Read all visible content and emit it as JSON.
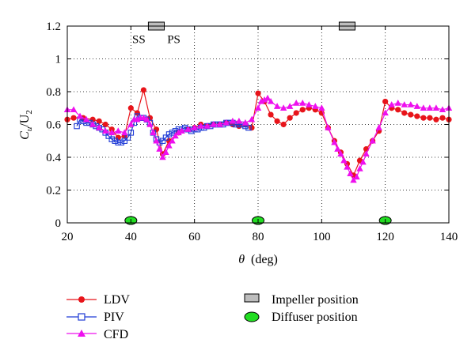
{
  "chart_data": {
    "type": "line",
    "xlabel_symbol": "θ",
    "xlabel_unit": "(deg)",
    "ylabel_main": "C",
    "ylabel_sub": "u",
    "ylabel_mid": "/U",
    "ylabel_sub2": "2",
    "xlim": [
      20,
      140
    ],
    "ylim": [
      0,
      1.2
    ],
    "x_ticks": [
      20,
      40,
      60,
      80,
      100,
      120,
      140
    ],
    "y_ticks": [
      0,
      0.2,
      0.4,
      0.6,
      0.8,
      1,
      1.2
    ],
    "x_tick_labels": [
      "20",
      "40",
      "60",
      "80",
      "100",
      "120",
      "140"
    ],
    "y_tick_labels": [
      "0",
      "0.2",
      "0.4",
      "0.6",
      "0.8",
      "1",
      "1.2"
    ],
    "grid": true,
    "legend_placement": "bottom",
    "annotations": [
      {
        "text": "SS",
        "x": 42.5,
        "y": 1.12
      },
      {
        "text": "PS",
        "x": 53.5,
        "y": 1.12
      }
    ],
    "series": [
      {
        "name": "LDV",
        "color": "#e8141a",
        "marker": "circle",
        "x": [
          20,
          22,
          25,
          28,
          30,
          32,
          34,
          36,
          38,
          40,
          42,
          44,
          46,
          48,
          50,
          52,
          55,
          58,
          60,
          62,
          64,
          66,
          68,
          70,
          72,
          74,
          76,
          78,
          80,
          82,
          84,
          86,
          88,
          90,
          92,
          94,
          96,
          98,
          100,
          102,
          104,
          106,
          108,
          110,
          112,
          114,
          116,
          118,
          120,
          122,
          124,
          126,
          128,
          130,
          132,
          134,
          136,
          138,
          140
        ],
        "y": [
          0.63,
          0.64,
          0.64,
          0.63,
          0.62,
          0.6,
          0.57,
          0.52,
          0.53,
          0.7,
          0.67,
          0.81,
          0.64,
          0.57,
          0.42,
          0.5,
          0.55,
          0.57,
          0.58,
          0.6,
          0.59,
          0.6,
          0.6,
          0.61,
          0.6,
          0.59,
          0.6,
          0.58,
          0.79,
          0.74,
          0.66,
          0.62,
          0.6,
          0.64,
          0.67,
          0.69,
          0.7,
          0.69,
          0.67,
          0.58,
          0.5,
          0.43,
          0.36,
          0.29,
          0.38,
          0.45,
          0.5,
          0.56,
          0.74,
          0.7,
          0.69,
          0.67,
          0.66,
          0.65,
          0.64,
          0.64,
          0.63,
          0.64,
          0.63
        ]
      },
      {
        "name": "PIV",
        "color": "#1f3bd6",
        "marker": "square",
        "x": [
          23,
          24,
          25,
          26,
          27,
          28,
          29,
          30,
          31,
          32,
          33,
          34,
          35,
          36,
          37,
          38,
          39,
          40,
          41,
          42,
          43,
          44,
          45,
          46,
          47,
          48,
          49,
          50,
          51,
          52,
          53,
          54,
          55,
          56,
          57,
          58,
          59,
          60,
          61,
          62,
          63,
          64,
          65,
          66,
          67,
          68,
          69,
          70,
          71,
          72,
          73,
          74,
          75,
          76,
          77
        ],
        "y": [
          0.59,
          0.63,
          0.62,
          0.61,
          0.61,
          0.6,
          0.59,
          0.58,
          0.57,
          0.55,
          0.53,
          0.51,
          0.5,
          0.49,
          0.49,
          0.5,
          0.52,
          0.55,
          0.61,
          0.65,
          0.64,
          0.64,
          0.63,
          0.61,
          0.55,
          0.51,
          0.49,
          0.5,
          0.52,
          0.54,
          0.55,
          0.56,
          0.57,
          0.57,
          0.58,
          0.57,
          0.56,
          0.57,
          0.57,
          0.58,
          0.58,
          0.59,
          0.59,
          0.6,
          0.6,
          0.6,
          0.6,
          0.61,
          0.61,
          0.61,
          0.6,
          0.6,
          0.6,
          0.59,
          0.58
        ]
      },
      {
        "name": "CFD",
        "color": "#ee10ee",
        "marker": "triangle",
        "x": [
          20,
          22,
          24,
          26,
          28,
          30,
          32,
          34,
          36,
          38,
          40,
          41,
          42,
          43,
          44,
          45,
          46,
          47,
          48,
          49,
          50,
          51,
          52,
          53,
          54,
          55,
          56,
          58,
          60,
          62,
          64,
          66,
          68,
          70,
          72,
          74,
          76,
          78,
          80,
          81,
          82,
          83,
          84,
          86,
          88,
          90,
          92,
          94,
          96,
          98,
          100,
          102,
          104,
          105,
          106,
          107,
          108,
          109,
          110,
          111,
          112,
          113,
          114,
          116,
          118,
          120,
          122,
          124,
          126,
          128,
          130,
          132,
          134,
          136,
          138,
          140
        ],
        "y": [
          0.69,
          0.69,
          0.65,
          0.63,
          0.6,
          0.58,
          0.56,
          0.55,
          0.56,
          0.55,
          0.6,
          0.63,
          0.63,
          0.64,
          0.64,
          0.63,
          0.6,
          0.55,
          0.5,
          0.45,
          0.4,
          0.43,
          0.47,
          0.5,
          0.53,
          0.55,
          0.56,
          0.57,
          0.58,
          0.59,
          0.59,
          0.6,
          0.6,
          0.61,
          0.62,
          0.62,
          0.61,
          0.63,
          0.7,
          0.74,
          0.75,
          0.76,
          0.74,
          0.71,
          0.7,
          0.71,
          0.73,
          0.73,
          0.72,
          0.71,
          0.7,
          0.58,
          0.49,
          0.45,
          0.42,
          0.38,
          0.34,
          0.3,
          0.26,
          0.28,
          0.33,
          0.37,
          0.42,
          0.5,
          0.58,
          0.67,
          0.72,
          0.73,
          0.72,
          0.72,
          0.71,
          0.7,
          0.7,
          0.7,
          0.69,
          0.7
        ]
      }
    ],
    "impeller_positions": [
      {
        "x1": 45.5,
        "x2": 50.5
      },
      {
        "x1": 105.5,
        "x2": 110.5
      }
    ],
    "diffuser_positions": [
      40,
      80,
      120
    ]
  },
  "legend": {
    "ldv": "LDV",
    "piv": "PIV",
    "cfd": "CFD",
    "impeller": "Impeller position",
    "diffuser": "Diffuser position",
    "impeller_fill": "#bdbdbd",
    "diffuser_fill": "#22dd22"
  }
}
